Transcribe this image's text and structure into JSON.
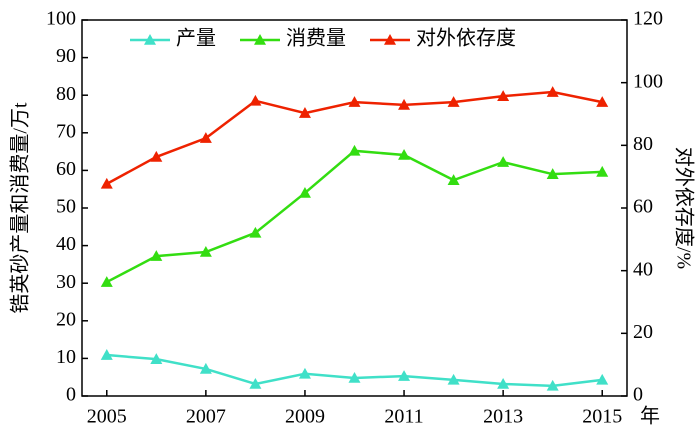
{
  "chart_data": {
    "type": "line",
    "x": [
      2005,
      2006,
      2007,
      2008,
      2009,
      2010,
      2011,
      2012,
      2013,
      2014,
      2015
    ],
    "xlim": [
      2004.5,
      2015.5
    ],
    "xticks": [
      2005,
      2007,
      2009,
      2011,
      2013,
      2015
    ],
    "xlabel": "年",
    "ylim": [
      0,
      100
    ],
    "yticks": [
      0,
      10,
      20,
      30,
      40,
      50,
      60,
      70,
      80,
      90,
      100
    ],
    "ylabel": "锆英砂产量和消费量/万t",
    "y2lim": [
      0,
      120
    ],
    "y2ticks": [
      0,
      20,
      40,
      60,
      80,
      100,
      120
    ],
    "y2label": "对外依存度/%",
    "grid": false,
    "legend": "top",
    "series": [
      {
        "name": "产量",
        "color": "#40e0c8",
        "values": [
          10.9,
          9.8,
          7.2,
          3.2,
          5.9,
          4.8,
          5.3,
          4.3,
          3.2,
          2.7,
          4.3
        ]
      },
      {
        "name": "消费量",
        "color": "#33dd11",
        "values": [
          30.3,
          37.2,
          38.3,
          43.4,
          54,
          65.2,
          64.1,
          57.4,
          62.2,
          59,
          59.6
        ]
      },
      {
        "name": "对外依存度",
        "color": "#ee2200",
        "axis": "y2",
        "values": [
          67.7,
          76.3,
          82.3,
          94.2,
          90.3,
          93.8,
          92.9,
          93.8,
          95.7,
          97,
          93.8
        ]
      }
    ]
  }
}
